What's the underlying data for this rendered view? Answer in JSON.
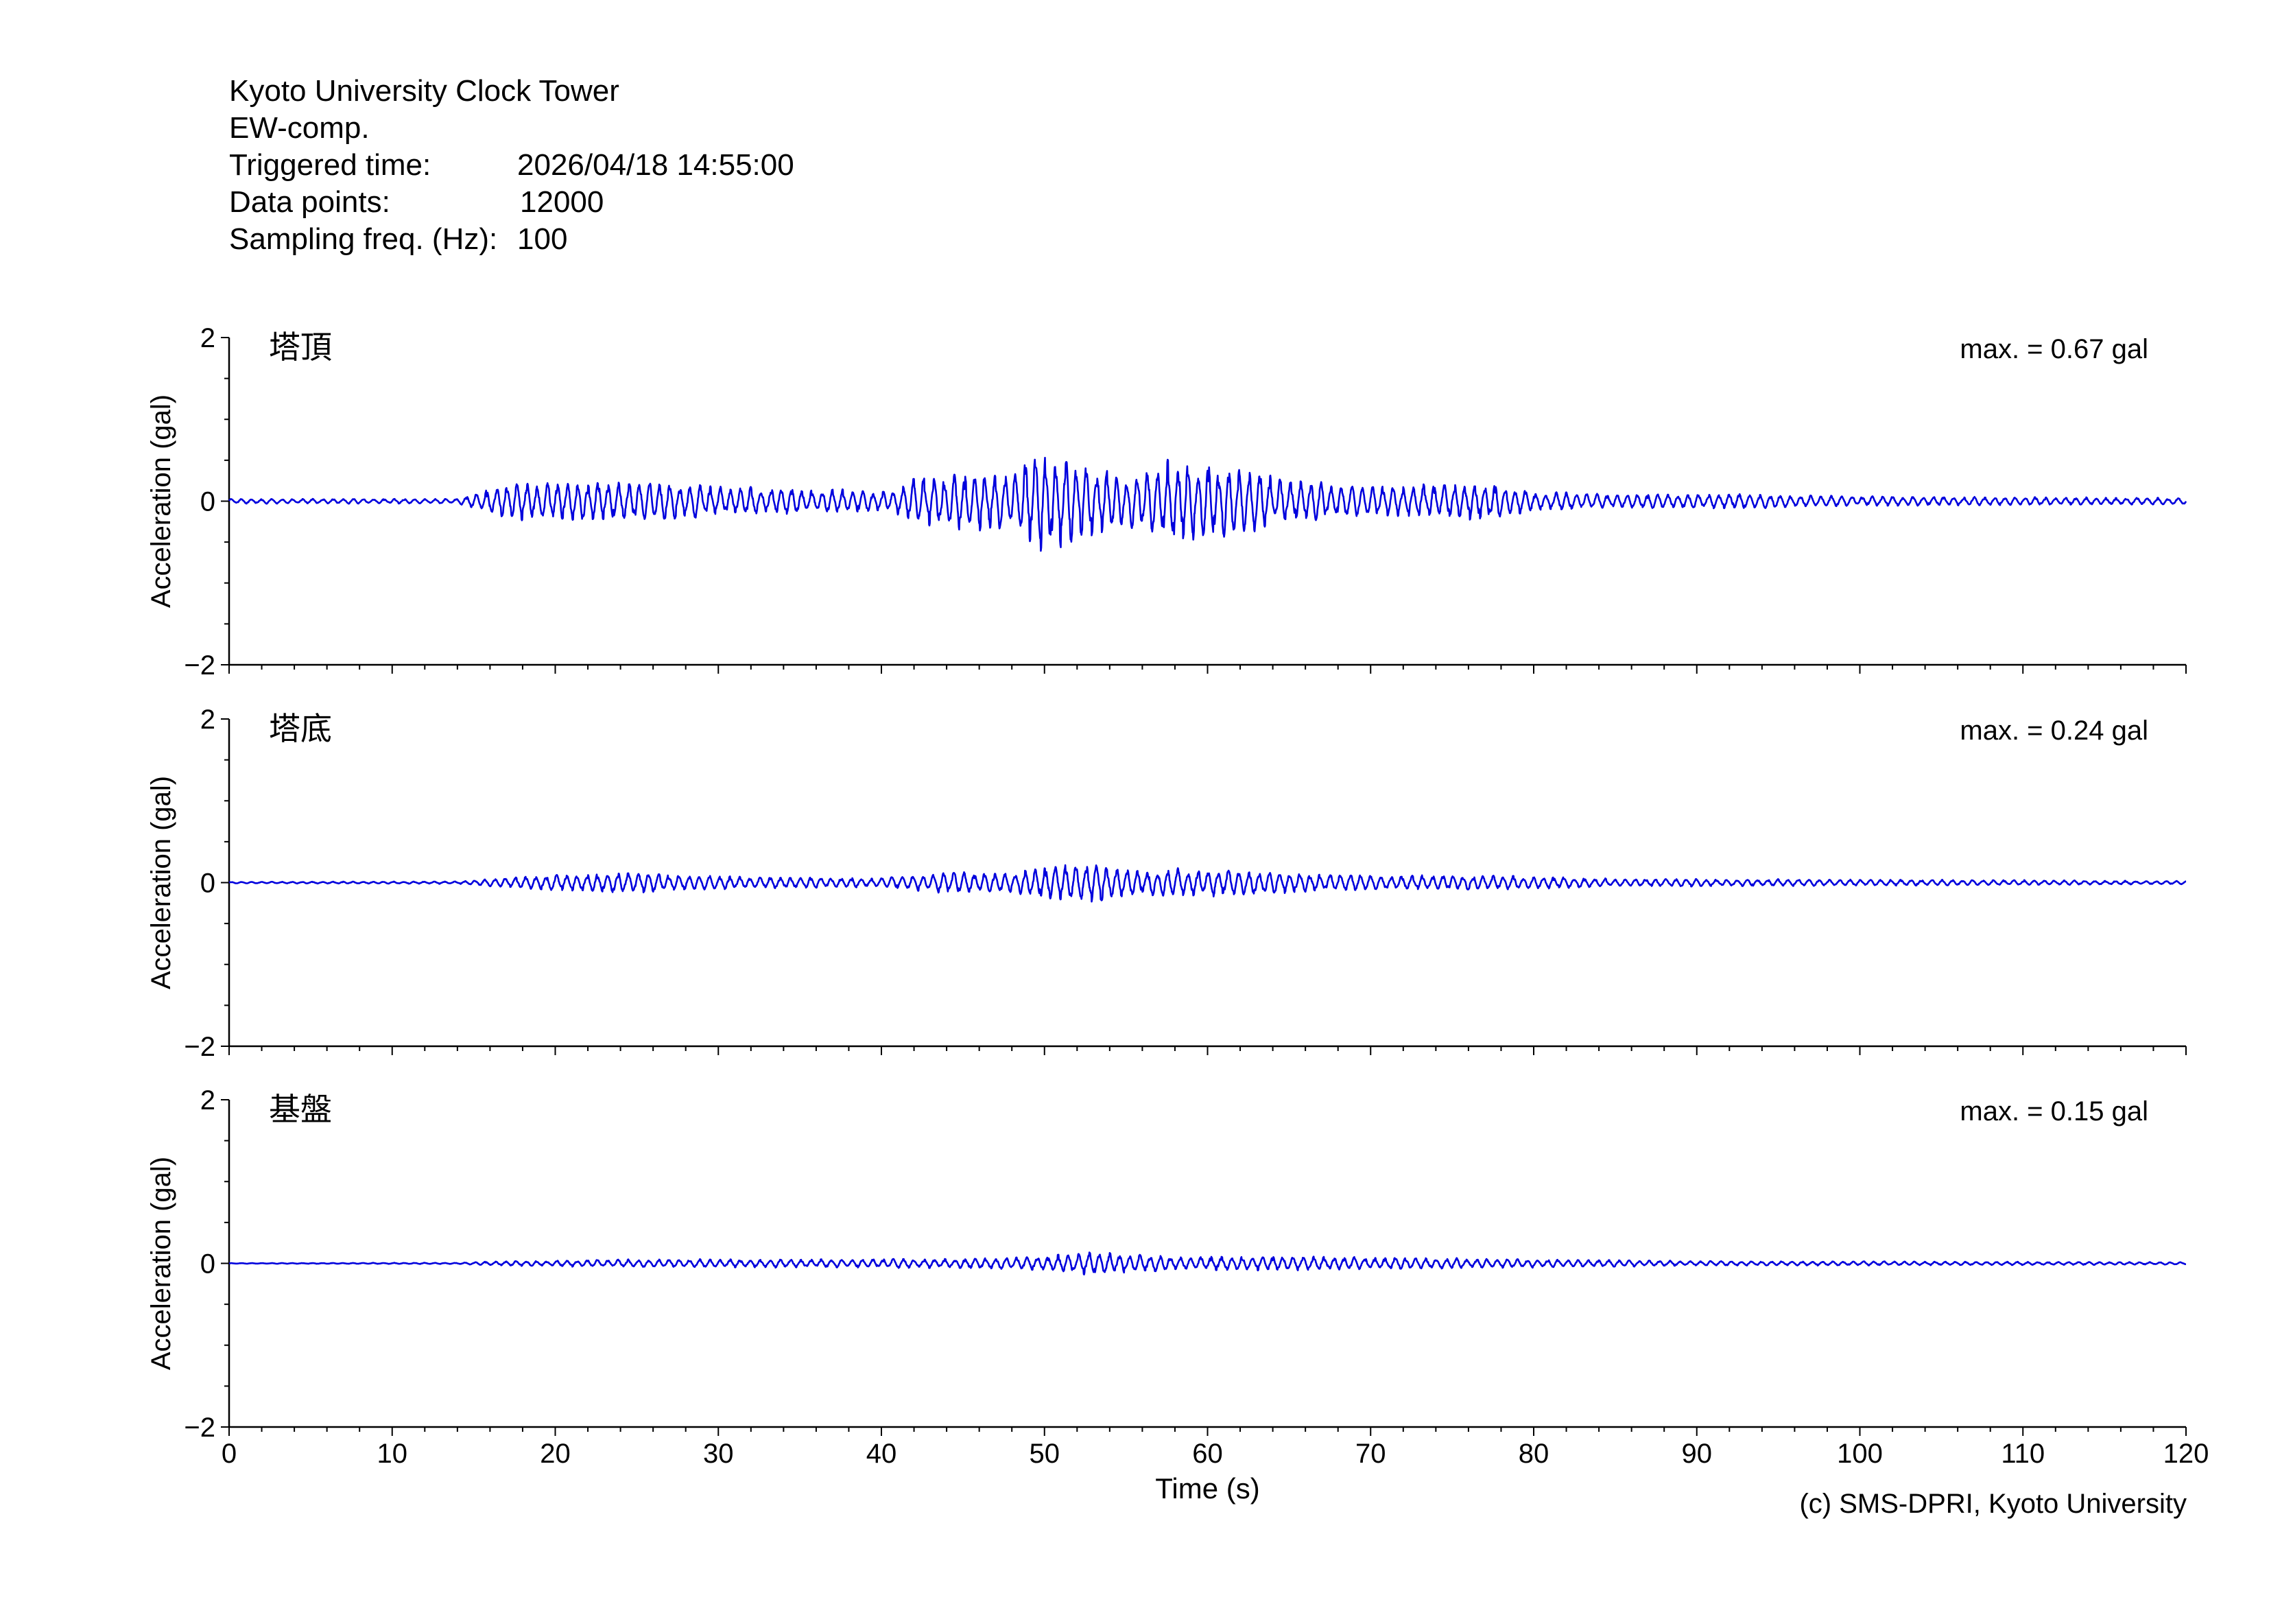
{
  "header": {
    "station": "Kyoto University Clock Tower",
    "component": "EW-comp.",
    "triggered_label": "Triggered time:",
    "triggered_value": "2026/04/18 14:55:00",
    "points_label": "Data points:",
    "points_value": "12000",
    "sampling_label": "Sampling freq. (Hz):",
    "sampling_value": "100"
  },
  "footer": {
    "copyright": "(c) SMS-DPRI, Kyoto University"
  },
  "colors": {
    "trace": "#0000dd",
    "axis": "#000000"
  },
  "chart_data": [
    {
      "type": "line",
      "panel": "塔頂",
      "title": "塔頂",
      "annotation": "max. = 0.67 gal",
      "ylabel": "Acceleration (gal)",
      "xlabel": "",
      "xlim": [
        0,
        120
      ],
      "ylim": [
        -2,
        2
      ],
      "yticks": [
        "2",
        "0",
        "−2"
      ],
      "max": 0.67,
      "envelope": [
        {
          "t": 0,
          "a": 0.03
        },
        {
          "t": 14,
          "a": 0.03
        },
        {
          "t": 16,
          "a": 0.16
        },
        {
          "t": 18,
          "a": 0.24
        },
        {
          "t": 22,
          "a": 0.24
        },
        {
          "t": 25,
          "a": 0.25
        },
        {
          "t": 30,
          "a": 0.18
        },
        {
          "t": 35,
          "a": 0.16
        },
        {
          "t": 40,
          "a": 0.12
        },
        {
          "t": 42,
          "a": 0.28
        },
        {
          "t": 45,
          "a": 0.35
        },
        {
          "t": 48,
          "a": 0.35
        },
        {
          "t": 49.6,
          "a": 0.67
        },
        {
          "t": 51,
          "a": 0.55
        },
        {
          "t": 53,
          "a": 0.42
        },
        {
          "t": 55,
          "a": 0.32
        },
        {
          "t": 58,
          "a": 0.55
        },
        {
          "t": 60,
          "a": 0.45
        },
        {
          "t": 62,
          "a": 0.42
        },
        {
          "t": 65,
          "a": 0.25
        },
        {
          "t": 70,
          "a": 0.18
        },
        {
          "t": 75,
          "a": 0.22
        },
        {
          "t": 78,
          "a": 0.22
        },
        {
          "t": 80,
          "a": 0.12
        },
        {
          "t": 85,
          "a": 0.08
        },
        {
          "t": 90,
          "a": 0.1
        },
        {
          "t": 100,
          "a": 0.06
        },
        {
          "t": 110,
          "a": 0.05
        },
        {
          "t": 120,
          "a": 0.04
        }
      ]
    },
    {
      "type": "line",
      "panel": "塔底",
      "title": "塔底",
      "annotation": "max. = 0.24 gal",
      "ylabel": "Acceleration (gal)",
      "xlabel": "",
      "xlim": [
        0,
        120
      ],
      "ylim": [
        -2,
        2
      ],
      "yticks": [
        "2",
        "0",
        "−2"
      ],
      "max": 0.24,
      "envelope": [
        {
          "t": 0,
          "a": 0.01
        },
        {
          "t": 14,
          "a": 0.015
        },
        {
          "t": 17,
          "a": 0.06
        },
        {
          "t": 20,
          "a": 0.1
        },
        {
          "t": 24,
          "a": 0.13
        },
        {
          "t": 30,
          "a": 0.08
        },
        {
          "t": 40,
          "a": 0.06
        },
        {
          "t": 44,
          "a": 0.13
        },
        {
          "t": 48,
          "a": 0.12
        },
        {
          "t": 50,
          "a": 0.2
        },
        {
          "t": 53,
          "a": 0.24
        },
        {
          "t": 56,
          "a": 0.16
        },
        {
          "t": 60,
          "a": 0.18
        },
        {
          "t": 62,
          "a": 0.15
        },
        {
          "t": 70,
          "a": 0.09
        },
        {
          "t": 78,
          "a": 0.09
        },
        {
          "t": 85,
          "a": 0.05
        },
        {
          "t": 100,
          "a": 0.04
        },
        {
          "t": 120,
          "a": 0.02
        }
      ]
    },
    {
      "type": "line",
      "panel": "基盤",
      "title": "基盤",
      "annotation": "max. = 0.15 gal",
      "ylabel": "Acceleration (gal)",
      "xlabel": "Time (s)",
      "xlim": [
        0,
        120
      ],
      "ylim": [
        -2,
        2
      ],
      "yticks": [
        "2",
        "0",
        "−2"
      ],
      "xticks": [
        "0",
        "10",
        "20",
        "30",
        "40",
        "50",
        "60",
        "70",
        "80",
        "90",
        "100",
        "110",
        "120"
      ],
      "max": 0.15,
      "envelope": [
        {
          "t": 0,
          "a": 0.004
        },
        {
          "t": 14,
          "a": 0.008
        },
        {
          "t": 17,
          "a": 0.03
        },
        {
          "t": 24,
          "a": 0.05
        },
        {
          "t": 35,
          "a": 0.05
        },
        {
          "t": 45,
          "a": 0.06
        },
        {
          "t": 50,
          "a": 0.09
        },
        {
          "t": 53,
          "a": 0.15
        },
        {
          "t": 58,
          "a": 0.08
        },
        {
          "t": 62,
          "a": 0.09
        },
        {
          "t": 73,
          "a": 0.07
        },
        {
          "t": 80,
          "a": 0.05
        },
        {
          "t": 90,
          "a": 0.03
        },
        {
          "t": 120,
          "a": 0.015
        }
      ]
    }
  ]
}
